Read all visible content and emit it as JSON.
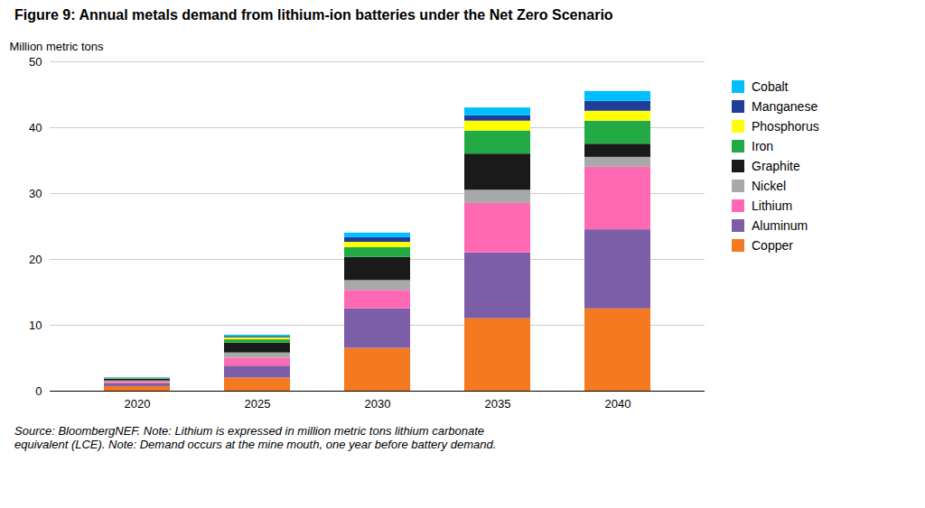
{
  "chart_data": {
    "type": "bar",
    "stacked": true,
    "title": "Figure 9: Annual metals demand from lithium-ion batteries under the Net Zero Scenario",
    "ylabel": "Million metric tons",
    "caption": "Source: BloombergNEF. Note: Lithium is expressed in million metric tons lithium carbonate\nequivalent (LCE). Note: Demand occurs at the mine mouth, one year before battery demand.",
    "categories": [
      "2020",
      "2025",
      "2030",
      "2035",
      "2040"
    ],
    "series": [
      {
        "name": "Copper",
        "color": "#F47920",
        "values": [
          0.7,
          2.0,
          6.5,
          11.0,
          12.5
        ]
      },
      {
        "name": "Aluminum",
        "color": "#7B5EA7",
        "values": [
          0.4,
          1.8,
          6.0,
          10.0,
          12.0
        ]
      },
      {
        "name": "Lithium",
        "color": "#FF69B4",
        "values": [
          0.25,
          1.2,
          2.8,
          7.5,
          9.5
        ]
      },
      {
        "name": "Nickel",
        "color": "#A9A9A9",
        "values": [
          0.2,
          0.8,
          1.5,
          2.0,
          1.5
        ]
      },
      {
        "name": "Graphite",
        "color": "#1A1A1A",
        "values": [
          0.25,
          1.5,
          3.5,
          5.5,
          2.0
        ]
      },
      {
        "name": "Iron",
        "color": "#22AA44",
        "values": [
          0.1,
          0.5,
          1.5,
          3.5,
          3.5
        ]
      },
      {
        "name": "Phosphorus",
        "color": "#FFFF00",
        "values": [
          0.05,
          0.3,
          0.8,
          1.5,
          1.5
        ]
      },
      {
        "name": "Manganese",
        "color": "#1F3D99",
        "values": [
          0.05,
          0.2,
          0.7,
          0.8,
          1.5
        ]
      },
      {
        "name": "Cobalt",
        "color": "#00BFFF",
        "values": [
          0.05,
          0.2,
          0.7,
          1.2,
          1.5
        ]
      }
    ],
    "ylim": [
      0,
      50
    ],
    "yticks": [
      0,
      10,
      20,
      30,
      40,
      50
    ],
    "grid": true,
    "legend": "right"
  }
}
